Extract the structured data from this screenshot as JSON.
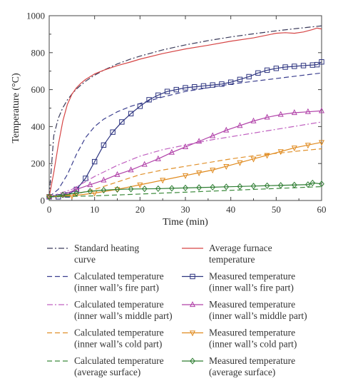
{
  "chart_data": {
    "type": "line",
    "xlabel": "Time (min)",
    "ylabel": "Temperature (°C)",
    "xlim": [
      0,
      60
    ],
    "ylim": [
      0,
      1000
    ],
    "x_ticks": [
      "0",
      "10",
      "20",
      "30",
      "40",
      "50",
      "60"
    ],
    "y_ticks": [
      "0",
      "200",
      "400",
      "600",
      "800",
      "1000"
    ],
    "legend_placement": "below",
    "series": [
      {
        "name": "Standard heating curve",
        "color": "#3a3a5a",
        "dash": "dash-dot",
        "marker": "none",
        "points": [
          [
            0,
            20
          ],
          [
            1,
            350
          ],
          [
            2,
            445
          ],
          [
            3,
            502
          ],
          [
            4,
            544
          ],
          [
            5,
            576
          ],
          [
            6,
            603
          ],
          [
            7,
            625
          ],
          [
            8,
            645
          ],
          [
            9,
            662
          ],
          [
            10,
            678
          ],
          [
            12,
            705
          ],
          [
            15,
            739
          ],
          [
            18,
            766
          ],
          [
            20,
            781
          ],
          [
            25,
            815
          ],
          [
            30,
            842
          ],
          [
            35,
            865
          ],
          [
            40,
            885
          ],
          [
            45,
            902
          ],
          [
            50,
            918
          ],
          [
            55,
            932
          ],
          [
            60,
            945
          ]
        ]
      },
      {
        "name": "Average furnace temperature",
        "color": "#d64545",
        "dash": "solid",
        "marker": "none",
        "points": [
          [
            0,
            20
          ],
          [
            1,
            150
          ],
          [
            2,
            300
          ],
          [
            3,
            430
          ],
          [
            4,
            520
          ],
          [
            5,
            575
          ],
          [
            6,
            610
          ],
          [
            7,
            635
          ],
          [
            8,
            655
          ],
          [
            10,
            685
          ],
          [
            12,
            705
          ],
          [
            15,
            730
          ],
          [
            18,
            750
          ],
          [
            20,
            765
          ],
          [
            25,
            795
          ],
          [
            30,
            820
          ],
          [
            35,
            840
          ],
          [
            40,
            862
          ],
          [
            45,
            880
          ],
          [
            48,
            895
          ],
          [
            50,
            905
          ],
          [
            52,
            908
          ],
          [
            54,
            905
          ],
          [
            56,
            912
          ],
          [
            58,
            925
          ],
          [
            59,
            933
          ],
          [
            60,
            928
          ]
        ]
      },
      {
        "name": "Calculated temperature (inner wall’s fire part)",
        "color": "#3b3f8f",
        "dash": "dashed",
        "marker": "none",
        "points": [
          [
            0,
            20
          ],
          [
            2,
            60
          ],
          [
            4,
            140
          ],
          [
            6,
            250
          ],
          [
            8,
            340
          ],
          [
            10,
            400
          ],
          [
            12,
            440
          ],
          [
            15,
            480
          ],
          [
            18,
            510
          ],
          [
            20,
            525
          ],
          [
            25,
            560
          ],
          [
            30,
            590
          ],
          [
            35,
            610
          ],
          [
            40,
            630
          ],
          [
            45,
            645
          ],
          [
            50,
            660
          ],
          [
            55,
            675
          ],
          [
            60,
            690
          ]
        ]
      },
      {
        "name": "Measured temperature (inner wall’s fire part)",
        "color": "#2e3580",
        "dash": "solid",
        "marker": "square",
        "points": [
          [
            0,
            20
          ],
          [
            2,
            20
          ],
          [
            4,
            30
          ],
          [
            6,
            60
          ],
          [
            8,
            120
          ],
          [
            10,
            210
          ],
          [
            12,
            300
          ],
          [
            14,
            370
          ],
          [
            16,
            425
          ],
          [
            18,
            470
          ],
          [
            20,
            510
          ],
          [
            22,
            545
          ],
          [
            24,
            570
          ],
          [
            26,
            590
          ],
          [
            28,
            600
          ],
          [
            30,
            610
          ],
          [
            32,
            615
          ],
          [
            34,
            620
          ],
          [
            36,
            625
          ],
          [
            38,
            630
          ],
          [
            40,
            640
          ],
          [
            42,
            655
          ],
          [
            44,
            670
          ],
          [
            46,
            690
          ],
          [
            48,
            705
          ],
          [
            50,
            715
          ],
          [
            52,
            722
          ],
          [
            54,
            726
          ],
          [
            56,
            730
          ],
          [
            58,
            733
          ],
          [
            59,
            735
          ],
          [
            60,
            750
          ]
        ]
      },
      {
        "name": "Calculated temperature (inner wall’s middle part)",
        "color": "#c060c0",
        "dash": "dash-dot",
        "marker": "none",
        "points": [
          [
            0,
            20
          ],
          [
            5,
            60
          ],
          [
            10,
            130
          ],
          [
            15,
            190
          ],
          [
            20,
            240
          ],
          [
            25,
            275
          ],
          [
            30,
            300
          ],
          [
            35,
            325
          ],
          [
            40,
            345
          ],
          [
            45,
            365
          ],
          [
            50,
            385
          ],
          [
            55,
            405
          ],
          [
            60,
            425
          ]
        ]
      },
      {
        "name": "Measured temperature (inner wall’s middle part)",
        "color": "#b040a8",
        "dash": "solid",
        "marker": "triangle",
        "points": [
          [
            0,
            20
          ],
          [
            3,
            30
          ],
          [
            6,
            60
          ],
          [
            9,
            85
          ],
          [
            12,
            110
          ],
          [
            15,
            140
          ],
          [
            18,
            165
          ],
          [
            21,
            195
          ],
          [
            24,
            225
          ],
          [
            27,
            260
          ],
          [
            30,
            290
          ],
          [
            33,
            320
          ],
          [
            36,
            350
          ],
          [
            39,
            380
          ],
          [
            42,
            405
          ],
          [
            45,
            430
          ],
          [
            48,
            450
          ],
          [
            51,
            465
          ],
          [
            54,
            475
          ],
          [
            57,
            480
          ],
          [
            60,
            485
          ]
        ]
      },
      {
        "name": "Calculated temperature (inner wall’s cold part)",
        "color": "#e0902a",
        "dash": "dashed",
        "marker": "none",
        "points": [
          [
            0,
            20
          ],
          [
            5,
            30
          ],
          [
            10,
            60
          ],
          [
            15,
            100
          ],
          [
            20,
            140
          ],
          [
            25,
            165
          ],
          [
            30,
            185
          ],
          [
            35,
            205
          ],
          [
            40,
            225
          ],
          [
            45,
            242
          ],
          [
            50,
            255
          ],
          [
            55,
            268
          ],
          [
            60,
            280
          ]
        ]
      },
      {
        "name": "Measured temperature (inner wall’s cold part)",
        "color": "#e08a1e",
        "dash": "solid",
        "marker": "triangle-down",
        "points": [
          [
            0,
            20
          ],
          [
            5,
            25
          ],
          [
            10,
            40
          ],
          [
            15,
            60
          ],
          [
            20,
            85
          ],
          [
            25,
            110
          ],
          [
            30,
            135
          ],
          [
            33,
            150
          ],
          [
            36,
            165
          ],
          [
            39,
            185
          ],
          [
            42,
            205
          ],
          [
            45,
            225
          ],
          [
            48,
            245
          ],
          [
            51,
            265
          ],
          [
            54,
            285
          ],
          [
            57,
            300
          ],
          [
            60,
            315
          ]
        ]
      },
      {
        "name": "Calculated temperature (average surface)",
        "color": "#3c8a3c",
        "dash": "dashed",
        "marker": "none",
        "points": [
          [
            0,
            20
          ],
          [
            10,
            25
          ],
          [
            20,
            35
          ],
          [
            30,
            45
          ],
          [
            40,
            55
          ],
          [
            50,
            65
          ],
          [
            60,
            75
          ]
        ]
      },
      {
        "name": "Measured temperature (average surface)",
        "color": "#2e7d32",
        "dash": "solid",
        "marker": "diamond",
        "points": [
          [
            0,
            20
          ],
          [
            3,
            30
          ],
          [
            6,
            40
          ],
          [
            9,
            50
          ],
          [
            12,
            56
          ],
          [
            15,
            60
          ],
          [
            18,
            62
          ],
          [
            21,
            63
          ],
          [
            24,
            64
          ],
          [
            27,
            66
          ],
          [
            30,
            68
          ],
          [
            33,
            70
          ],
          [
            36,
            72
          ],
          [
            39,
            74
          ],
          [
            42,
            76
          ],
          [
            45,
            78
          ],
          [
            48,
            80
          ],
          [
            51,
            82
          ],
          [
            54,
            84
          ],
          [
            57,
            86
          ],
          [
            58,
            95
          ],
          [
            60,
            90
          ]
        ]
      }
    ]
  },
  "legend": {
    "items": [
      {
        "series": 0,
        "lines": [
          "Standard heating",
          "curve"
        ]
      },
      {
        "series": 1,
        "lines": [
          "Average furnace",
          "temperature"
        ]
      },
      {
        "series": 2,
        "lines": [
          "Calculated temperature",
          "(inner wall’s fire part)"
        ]
      },
      {
        "series": 3,
        "lines": [
          "Measured temperature",
          "(inner wall’s fire part)"
        ]
      },
      {
        "series": 4,
        "lines": [
          "Calculated temperature",
          "(inner wall’s middle part)"
        ]
      },
      {
        "series": 5,
        "lines": [
          "Measured temperature",
          "(inner wall’s middle part)"
        ]
      },
      {
        "series": 6,
        "lines": [
          "Calculated temperature",
          "(inner wall’s cold part)"
        ]
      },
      {
        "series": 7,
        "lines": [
          "Measured temperature",
          "(inner wall’s cold part)"
        ]
      },
      {
        "series": 8,
        "lines": [
          "Calculated temperature",
          "(average surface)"
        ]
      },
      {
        "series": 9,
        "lines": [
          "Measured temperature",
          "(average surface)"
        ]
      }
    ]
  }
}
